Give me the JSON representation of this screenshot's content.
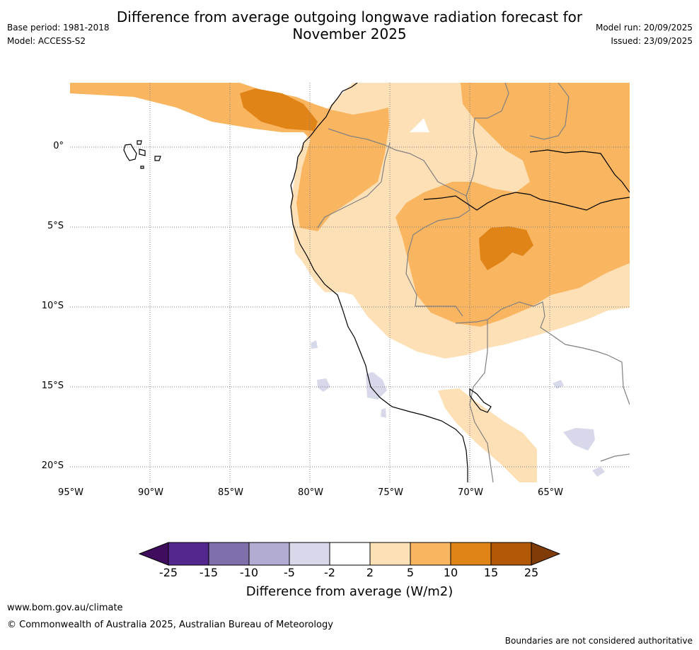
{
  "header": {
    "title_line1": "Difference from average outgoing longwave radiation forecast for",
    "title_line2": "November 2025",
    "base_period": "Base period: 1981-2018",
    "model": "Model: ACCESS-S2",
    "model_run": "Model run: 20/09/2025",
    "issued": "Issued: 23/09/2025"
  },
  "map": {
    "lat_labels": [
      "0°",
      "5°S",
      "10°S",
      "15°S",
      "20°S"
    ],
    "lon_labels": [
      "95°W",
      "90°W",
      "85°W",
      "80°W",
      "75°W",
      "70°W",
      "65°W"
    ],
    "colors": {
      "pos_2_5": "#fde0b6",
      "pos_5_10": "#fab560",
      "pos_10_15": "#e08418",
      "neg_2_5": "#d8d8eb",
      "coast": "#000000",
      "border": "#808080",
      "grid": "#808080"
    }
  },
  "colorbar": {
    "ticks": [
      "-25",
      "-15",
      "-10",
      "-5",
      "-2",
      "2",
      "5",
      "10",
      "15",
      "25"
    ],
    "colors": [
      "#3f0c5e",
      "#54278f",
      "#7f6fab",
      "#b2abd2",
      "#d8d8eb",
      "#ffffff",
      "#fde0b6",
      "#fab560",
      "#e08418",
      "#b35806",
      "#7f3b08"
    ],
    "label": "Difference from average (W/m2)"
  },
  "footer": {
    "website": "www.bom.gov.au/climate",
    "copyright": "© Commonwealth of Australia 2025, Australian Bureau of Meteorology",
    "disclaimer": "Boundaries are not considered authoritative"
  }
}
